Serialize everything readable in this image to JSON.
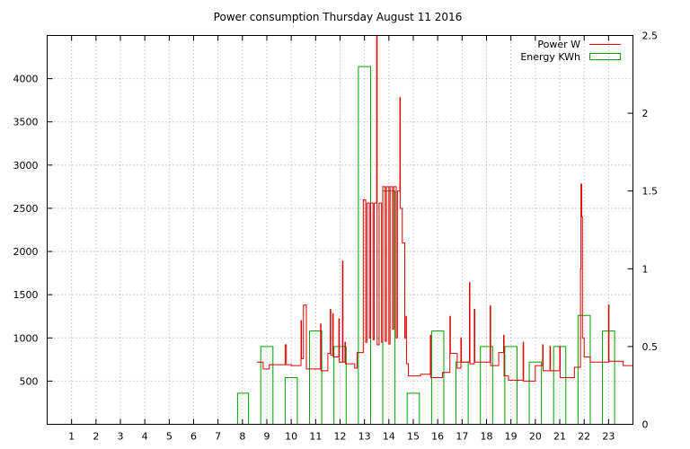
{
  "chart_data": {
    "type": "bar",
    "title": "Power consumption Thursday August 11 2016",
    "xlabel": "",
    "ylabel": "",
    "y2label": "",
    "grid": true,
    "legend_position": "top-right",
    "xlim": [
      0,
      24
    ],
    "ylim": [
      0,
      4500
    ],
    "y2lim": [
      0,
      2.5
    ],
    "x_ticks": [
      1,
      2,
      3,
      4,
      5,
      6,
      7,
      8,
      9,
      10,
      11,
      12,
      13,
      14,
      15,
      16,
      17,
      18,
      19,
      20,
      21,
      22,
      23
    ],
    "y_ticks": [
      500,
      1000,
      1500,
      2000,
      2500,
      3000,
      3500,
      4000
    ],
    "y2_ticks": [
      0,
      0.5,
      1,
      1.5,
      2,
      2.5
    ],
    "y2_tick_labels": [
      "0",
      "0.5",
      "1",
      "1.5",
      "2",
      "2.5"
    ],
    "colors": {
      "power": "#dd0000",
      "energy": "#00a000"
    },
    "series": [
      {
        "name": "Power W",
        "kind": "step-line",
        "axis": "y",
        "points": [
          [
            8.6,
            720
          ],
          [
            8.85,
            720
          ],
          [
            8.85,
            640
          ],
          [
            9.1,
            640
          ],
          [
            9.1,
            690
          ],
          [
            9.75,
            690
          ],
          [
            9.75,
            920
          ],
          [
            9.8,
            920
          ],
          [
            9.8,
            690
          ],
          [
            10.0,
            690
          ],
          [
            10.0,
            680
          ],
          [
            10.4,
            680
          ],
          [
            10.4,
            1200
          ],
          [
            10.42,
            1200
          ],
          [
            10.42,
            760
          ],
          [
            10.5,
            760
          ],
          [
            10.5,
            1380
          ],
          [
            10.62,
            1380
          ],
          [
            10.62,
            640
          ],
          [
            11.2,
            640
          ],
          [
            11.2,
            1160
          ],
          [
            11.22,
            1160
          ],
          [
            11.22,
            620
          ],
          [
            11.5,
            620
          ],
          [
            11.5,
            820
          ],
          [
            11.6,
            820
          ],
          [
            11.6,
            1330
          ],
          [
            11.62,
            1330
          ],
          [
            11.62,
            800
          ],
          [
            11.7,
            800
          ],
          [
            11.7,
            1280
          ],
          [
            11.72,
            1280
          ],
          [
            11.72,
            780
          ],
          [
            11.95,
            780
          ],
          [
            11.95,
            1220
          ],
          [
            11.97,
            1220
          ],
          [
            11.97,
            720
          ],
          [
            12.1,
            720
          ],
          [
            12.1,
            1890
          ],
          [
            12.12,
            1890
          ],
          [
            12.12,
            720
          ],
          [
            12.2,
            720
          ],
          [
            12.2,
            950
          ],
          [
            12.22,
            950
          ],
          [
            12.22,
            700
          ],
          [
            12.6,
            700
          ],
          [
            12.6,
            650
          ],
          [
            12.7,
            650
          ],
          [
            12.7,
            830
          ],
          [
            12.95,
            830
          ],
          [
            12.95,
            2600
          ],
          [
            13.05,
            2600
          ],
          [
            13.05,
            950
          ],
          [
            13.1,
            950
          ],
          [
            13.1,
            2560
          ],
          [
            13.2,
            2560
          ],
          [
            13.2,
            1000
          ],
          [
            13.25,
            1000
          ],
          [
            13.25,
            2560
          ],
          [
            13.35,
            2560
          ],
          [
            13.35,
            980
          ],
          [
            13.4,
            980
          ],
          [
            13.4,
            2560
          ],
          [
            13.5,
            2560
          ],
          [
            13.5,
            4500
          ],
          [
            13.52,
            4500
          ],
          [
            13.52,
            920
          ],
          [
            13.6,
            920
          ],
          [
            13.6,
            2560
          ],
          [
            13.7,
            2560
          ],
          [
            13.7,
            950
          ],
          [
            13.75,
            950
          ],
          [
            13.75,
            2750
          ],
          [
            13.85,
            2750
          ],
          [
            13.85,
            960
          ],
          [
            13.9,
            960
          ],
          [
            13.9,
            2750
          ],
          [
            14.0,
            2750
          ],
          [
            14.0,
            930
          ],
          [
            14.05,
            930
          ],
          [
            14.05,
            2750
          ],
          [
            14.15,
            2750
          ],
          [
            14.15,
            1100
          ],
          [
            14.2,
            1100
          ],
          [
            14.2,
            2750
          ],
          [
            14.3,
            2750
          ],
          [
            14.3,
            1000
          ],
          [
            14.35,
            1000
          ],
          [
            14.35,
            2700
          ],
          [
            14.45,
            2700
          ],
          [
            14.45,
            3780
          ],
          [
            14.47,
            3780
          ],
          [
            14.47,
            2500
          ],
          [
            14.55,
            2500
          ],
          [
            14.55,
            2100
          ],
          [
            14.65,
            2100
          ],
          [
            14.65,
            1000
          ],
          [
            14.7,
            1000
          ],
          [
            14.7,
            1250
          ],
          [
            14.72,
            1250
          ],
          [
            14.72,
            700
          ],
          [
            14.8,
            700
          ],
          [
            14.8,
            560
          ],
          [
            15.3,
            560
          ],
          [
            15.3,
            580
          ],
          [
            15.7,
            580
          ],
          [
            15.7,
            1030
          ],
          [
            15.72,
            1030
          ],
          [
            15.72,
            540
          ],
          [
            16.2,
            540
          ],
          [
            16.2,
            600
          ],
          [
            16.5,
            600
          ],
          [
            16.5,
            1250
          ],
          [
            16.52,
            1250
          ],
          [
            16.52,
            820
          ],
          [
            16.8,
            820
          ],
          [
            16.8,
            650
          ],
          [
            16.95,
            650
          ],
          [
            16.95,
            1000
          ],
          [
            16.97,
            1000
          ],
          [
            16.97,
            720
          ],
          [
            17.3,
            720
          ],
          [
            17.3,
            1640
          ],
          [
            17.32,
            1640
          ],
          [
            17.32,
            700
          ],
          [
            17.5,
            700
          ],
          [
            17.5,
            1330
          ],
          [
            17.52,
            1330
          ],
          [
            17.52,
            720
          ],
          [
            18.15,
            720
          ],
          [
            18.15,
            1370
          ],
          [
            18.17,
            1370
          ],
          [
            18.17,
            680
          ],
          [
            18.5,
            680
          ],
          [
            18.5,
            830
          ],
          [
            18.7,
            830
          ],
          [
            18.7,
            1030
          ],
          [
            18.72,
            1030
          ],
          [
            18.72,
            560
          ],
          [
            18.9,
            560
          ],
          [
            18.9,
            510
          ],
          [
            19.5,
            510
          ],
          [
            19.5,
            950
          ],
          [
            19.52,
            950
          ],
          [
            19.52,
            500
          ],
          [
            20.0,
            500
          ],
          [
            20.0,
            680
          ],
          [
            20.3,
            680
          ],
          [
            20.3,
            920
          ],
          [
            20.32,
            920
          ],
          [
            20.32,
            620
          ],
          [
            20.6,
            620
          ],
          [
            20.6,
            900
          ],
          [
            20.62,
            900
          ],
          [
            20.62,
            620
          ],
          [
            21.0,
            620
          ],
          [
            21.0,
            900
          ],
          [
            21.02,
            900
          ],
          [
            21.02,
            540
          ],
          [
            21.6,
            540
          ],
          [
            21.6,
            660
          ],
          [
            21.85,
            660
          ],
          [
            21.85,
            1800
          ],
          [
            21.87,
            1800
          ],
          [
            21.87,
            2780
          ],
          [
            21.9,
            2780
          ],
          [
            21.9,
            2400
          ],
          [
            21.93,
            2400
          ],
          [
            21.93,
            1000
          ],
          [
            22.0,
            1000
          ],
          [
            22.0,
            780
          ],
          [
            22.25,
            780
          ],
          [
            22.25,
            720
          ],
          [
            23.0,
            720
          ],
          [
            23.0,
            1380
          ],
          [
            23.02,
            1380
          ],
          [
            23.02,
            730
          ],
          [
            23.6,
            730
          ],
          [
            23.6,
            680
          ],
          [
            24.0,
            680
          ]
        ]
      },
      {
        "name": "Energy KWh",
        "kind": "boxes",
        "axis": "y2",
        "bars": [
          [
            7.8,
            8.25,
            0.2
          ],
          [
            8.75,
            9.25,
            0.5
          ],
          [
            9.75,
            10.25,
            0.3
          ],
          [
            10.75,
            11.25,
            0.6
          ],
          [
            11.75,
            12.25,
            0.5
          ],
          [
            12.75,
            13.25,
            2.3
          ],
          [
            13.75,
            14.25,
            1.5
          ],
          [
            14.75,
            15.25,
            0.2
          ],
          [
            15.75,
            16.25,
            0.6
          ],
          [
            16.75,
            17.25,
            0.4
          ],
          [
            17.75,
            18.25,
            0.5
          ],
          [
            18.75,
            19.25,
            0.5
          ],
          [
            19.75,
            20.25,
            0.4
          ],
          [
            20.75,
            21.25,
            0.5
          ],
          [
            21.75,
            22.25,
            0.7
          ],
          [
            22.75,
            23.25,
            0.6
          ]
        ]
      }
    ]
  }
}
